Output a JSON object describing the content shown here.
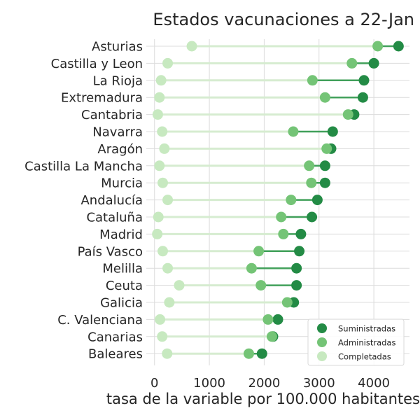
{
  "chart_data": {
    "type": "dumbbell",
    "title": "Estados vacunaciones a 22-Jan",
    "xlabel": "tasa de la variable por 100.000 habitantes",
    "ylabel": "",
    "xlim": [
      -150,
      4650
    ],
    "xticks": [
      0,
      1000,
      2000,
      3000,
      4000
    ],
    "grid": true,
    "legend_position": "lower-right",
    "categories": [
      "Asturias",
      "Castilla y Leon",
      "La Rioja",
      "Extremadura",
      "Cantabria",
      "Navarra",
      "Aragón",
      "Castilla La Mancha",
      "Murcia",
      "Andalucía",
      "Cataluña",
      "Madrid",
      "País Vasco",
      "Melilla",
      "Ceuta",
      "Galicia",
      "C. Valenciana",
      "Canarias",
      "Baleares"
    ],
    "series": [
      {
        "name": "Suministradas",
        "color": "#238b45",
        "values": [
          4450,
          4000,
          3820,
          3800,
          3640,
          3250,
          3220,
          3110,
          3110,
          2970,
          2870,
          2670,
          2640,
          2590,
          2590,
          2540,
          2250,
          2160,
          1960
        ]
      },
      {
        "name": "Administradas",
        "color": "#74c476",
        "values": [
          4070,
          3600,
          2880,
          3110,
          3530,
          2530,
          3140,
          2820,
          2860,
          2490,
          2310,
          2350,
          1900,
          1770,
          1940,
          2420,
          2070,
          2140,
          1720
        ]
      },
      {
        "name": "Completadas",
        "color": "#c7e9c0",
        "values": [
          680,
          240,
          120,
          90,
          60,
          140,
          180,
          90,
          150,
          240,
          70,
          50,
          150,
          240,
          450,
          270,
          100,
          140,
          230
        ]
      }
    ]
  }
}
